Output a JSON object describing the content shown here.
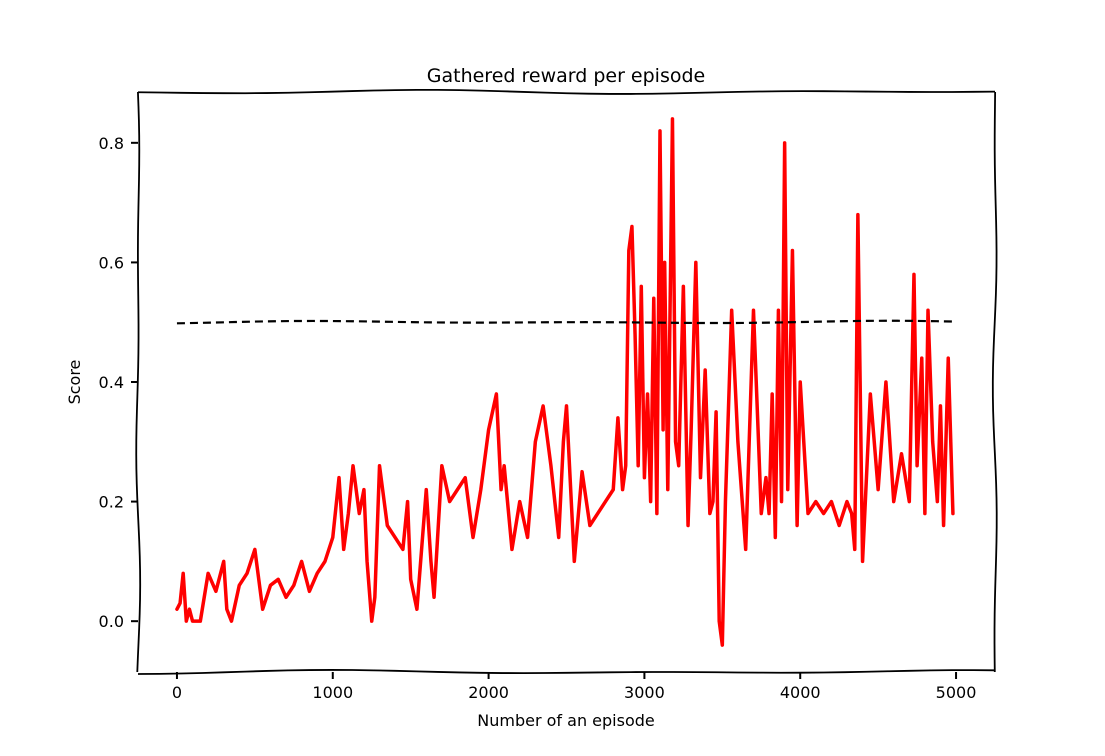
{
  "chart_data": {
    "type": "line",
    "title": "Gathered reward per episode",
    "xlabel": "Number of an episode",
    "ylabel": "Score",
    "xlim": [
      -250,
      5250
    ],
    "ylim": [
      -0.085,
      0.885
    ],
    "x_ticks": [
      0,
      1000,
      2000,
      3000,
      4000,
      5000
    ],
    "x_tick_labels": [
      "0",
      "1000",
      "2000",
      "3000",
      "4000",
      "5000"
    ],
    "y_ticks": [
      0.0,
      0.2,
      0.4,
      0.6,
      0.8
    ],
    "y_tick_labels": [
      "0.0",
      "0.2",
      "0.4",
      "0.6",
      "0.8"
    ],
    "grid": false,
    "style": "xkcd",
    "series": [
      {
        "color": "#ff0000",
        "line_style": "solid",
        "x": [
          0,
          20,
          40,
          60,
          80,
          100,
          150,
          200,
          250,
          300,
          320,
          350,
          400,
          450,
          500,
          550,
          600,
          650,
          700,
          750,
          800,
          850,
          900,
          950,
          1000,
          1040,
          1070,
          1100,
          1130,
          1170,
          1200,
          1220,
          1250,
          1270,
          1300,
          1350,
          1400,
          1450,
          1480,
          1500,
          1540,
          1570,
          1600,
          1630,
          1650,
          1700,
          1750,
          1800,
          1850,
          1900,
          1950,
          2000,
          2050,
          2080,
          2100,
          2150,
          2200,
          2250,
          2300,
          2350,
          2400,
          2450,
          2480,
          2500,
          2550,
          2600,
          2650,
          2700,
          2750,
          2800,
          2830,
          2860,
          2880,
          2900,
          2920,
          2940,
          2960,
          2980,
          3000,
          3020,
          3040,
          3060,
          3080,
          3100,
          3120,
          3130,
          3150,
          3180,
          3200,
          3220,
          3250,
          3280,
          3300,
          3330,
          3360,
          3390,
          3420,
          3440,
          3460,
          3480,
          3500,
          3520,
          3560,
          3600,
          3650,
          3700,
          3750,
          3780,
          3800,
          3820,
          3840,
          3860,
          3880,
          3900,
          3920,
          3950,
          3980,
          4000,
          4050,
          4100,
          4150,
          4200,
          4250,
          4300,
          4330,
          4350,
          4370,
          4400,
          4450,
          4500,
          4550,
          4600,
          4650,
          4700,
          4730,
          4750,
          4780,
          4800,
          4820,
          4850,
          4880,
          4900,
          4920,
          4950,
          4980
        ],
        "y": [
          0.02,
          0.03,
          0.08,
          0.0,
          0.02,
          0.0,
          0.0,
          0.08,
          0.05,
          0.1,
          0.02,
          0.0,
          0.06,
          0.08,
          0.12,
          0.02,
          0.06,
          0.07,
          0.04,
          0.06,
          0.1,
          0.05,
          0.08,
          0.1,
          0.14,
          0.24,
          0.12,
          0.18,
          0.26,
          0.18,
          0.22,
          0.1,
          0.0,
          0.04,
          0.26,
          0.16,
          0.14,
          0.12,
          0.2,
          0.07,
          0.02,
          0.12,
          0.22,
          0.1,
          0.04,
          0.26,
          0.2,
          0.22,
          0.24,
          0.14,
          0.22,
          0.32,
          0.38,
          0.22,
          0.26,
          0.12,
          0.2,
          0.14,
          0.3,
          0.36,
          0.26,
          0.14,
          0.3,
          0.36,
          0.1,
          0.25,
          0.16,
          0.18,
          0.2,
          0.22,
          0.34,
          0.22,
          0.26,
          0.62,
          0.66,
          0.48,
          0.26,
          0.56,
          0.24,
          0.38,
          0.2,
          0.54,
          0.18,
          0.82,
          0.32,
          0.6,
          0.22,
          0.84,
          0.3,
          0.26,
          0.56,
          0.16,
          0.32,
          0.6,
          0.24,
          0.42,
          0.18,
          0.2,
          0.35,
          0.0,
          -0.04,
          0.2,
          0.52,
          0.3,
          0.12,
          0.52,
          0.18,
          0.24,
          0.18,
          0.38,
          0.14,
          0.52,
          0.2,
          0.8,
          0.22,
          0.62,
          0.16,
          0.4,
          0.18,
          0.2,
          0.18,
          0.2,
          0.16,
          0.2,
          0.18,
          0.12,
          0.68,
          0.1,
          0.38,
          0.22,
          0.4,
          0.2,
          0.28,
          0.2,
          0.58,
          0.26,
          0.44,
          0.18,
          0.52,
          0.3,
          0.2,
          0.36,
          0.16,
          0.44,
          0.18
        ]
      },
      {
        "color": "#000000",
        "line_style": "dashed",
        "x": [
          0,
          5000
        ],
        "y": [
          0.5,
          0.5
        ]
      }
    ]
  }
}
